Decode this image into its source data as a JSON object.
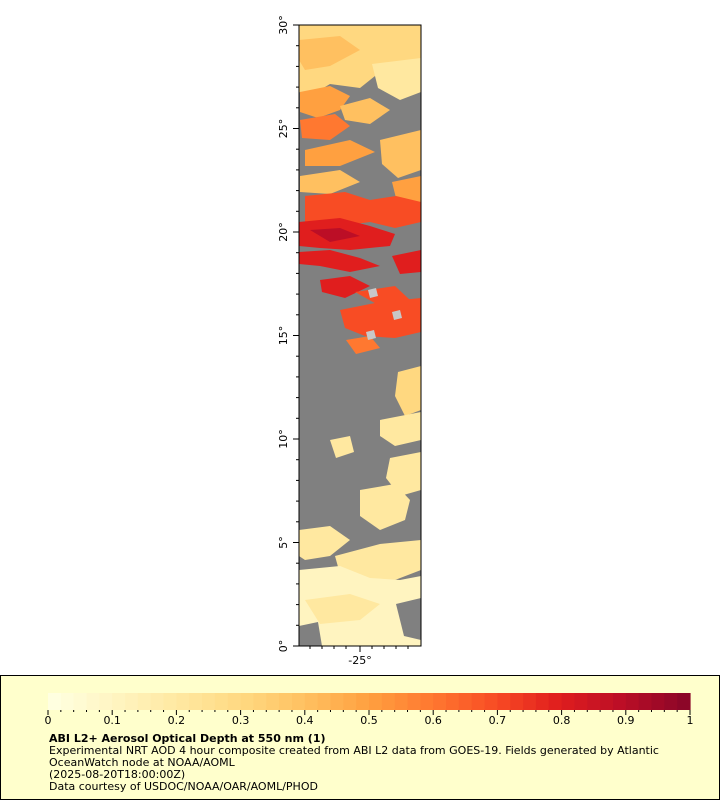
{
  "map": {
    "lat_ticks": [
      "0°",
      "5°",
      "10°",
      "15°",
      "20°",
      "25°",
      "30°"
    ],
    "lon_ticks": [
      "-25°"
    ],
    "land_color": "#808080",
    "missing_color": "#c8c8c8"
  },
  "legend": {
    "title": "ABI L2+ Aerosol Optical Depth at 550 nm (1)",
    "description": "Experimental NRT AOD 4 hour composite created from ABI L2 data from GOES-19. Fields generated by Atlantic OceanWatch node at NOAA/AOML",
    "timestamp": "(2025-08-20T18:00:00Z)",
    "credit": "Data courtesy of USDOC/NOAA/OAR/AOML/PHOD",
    "ticks": [
      "0",
      "0.1",
      "0.2",
      "0.3",
      "0.4",
      "0.5",
      "0.6",
      "0.7",
      "0.8",
      "0.9",
      "1"
    ],
    "range": [
      0,
      1
    ],
    "palette": [
      "#ffffe0",
      "#fff4c0",
      "#ffe8a0",
      "#ffd880",
      "#ffc060",
      "#ffa040",
      "#ff7830",
      "#f84c24",
      "#e01e1e",
      "#bc0e26",
      "#8c0628"
    ]
  }
}
